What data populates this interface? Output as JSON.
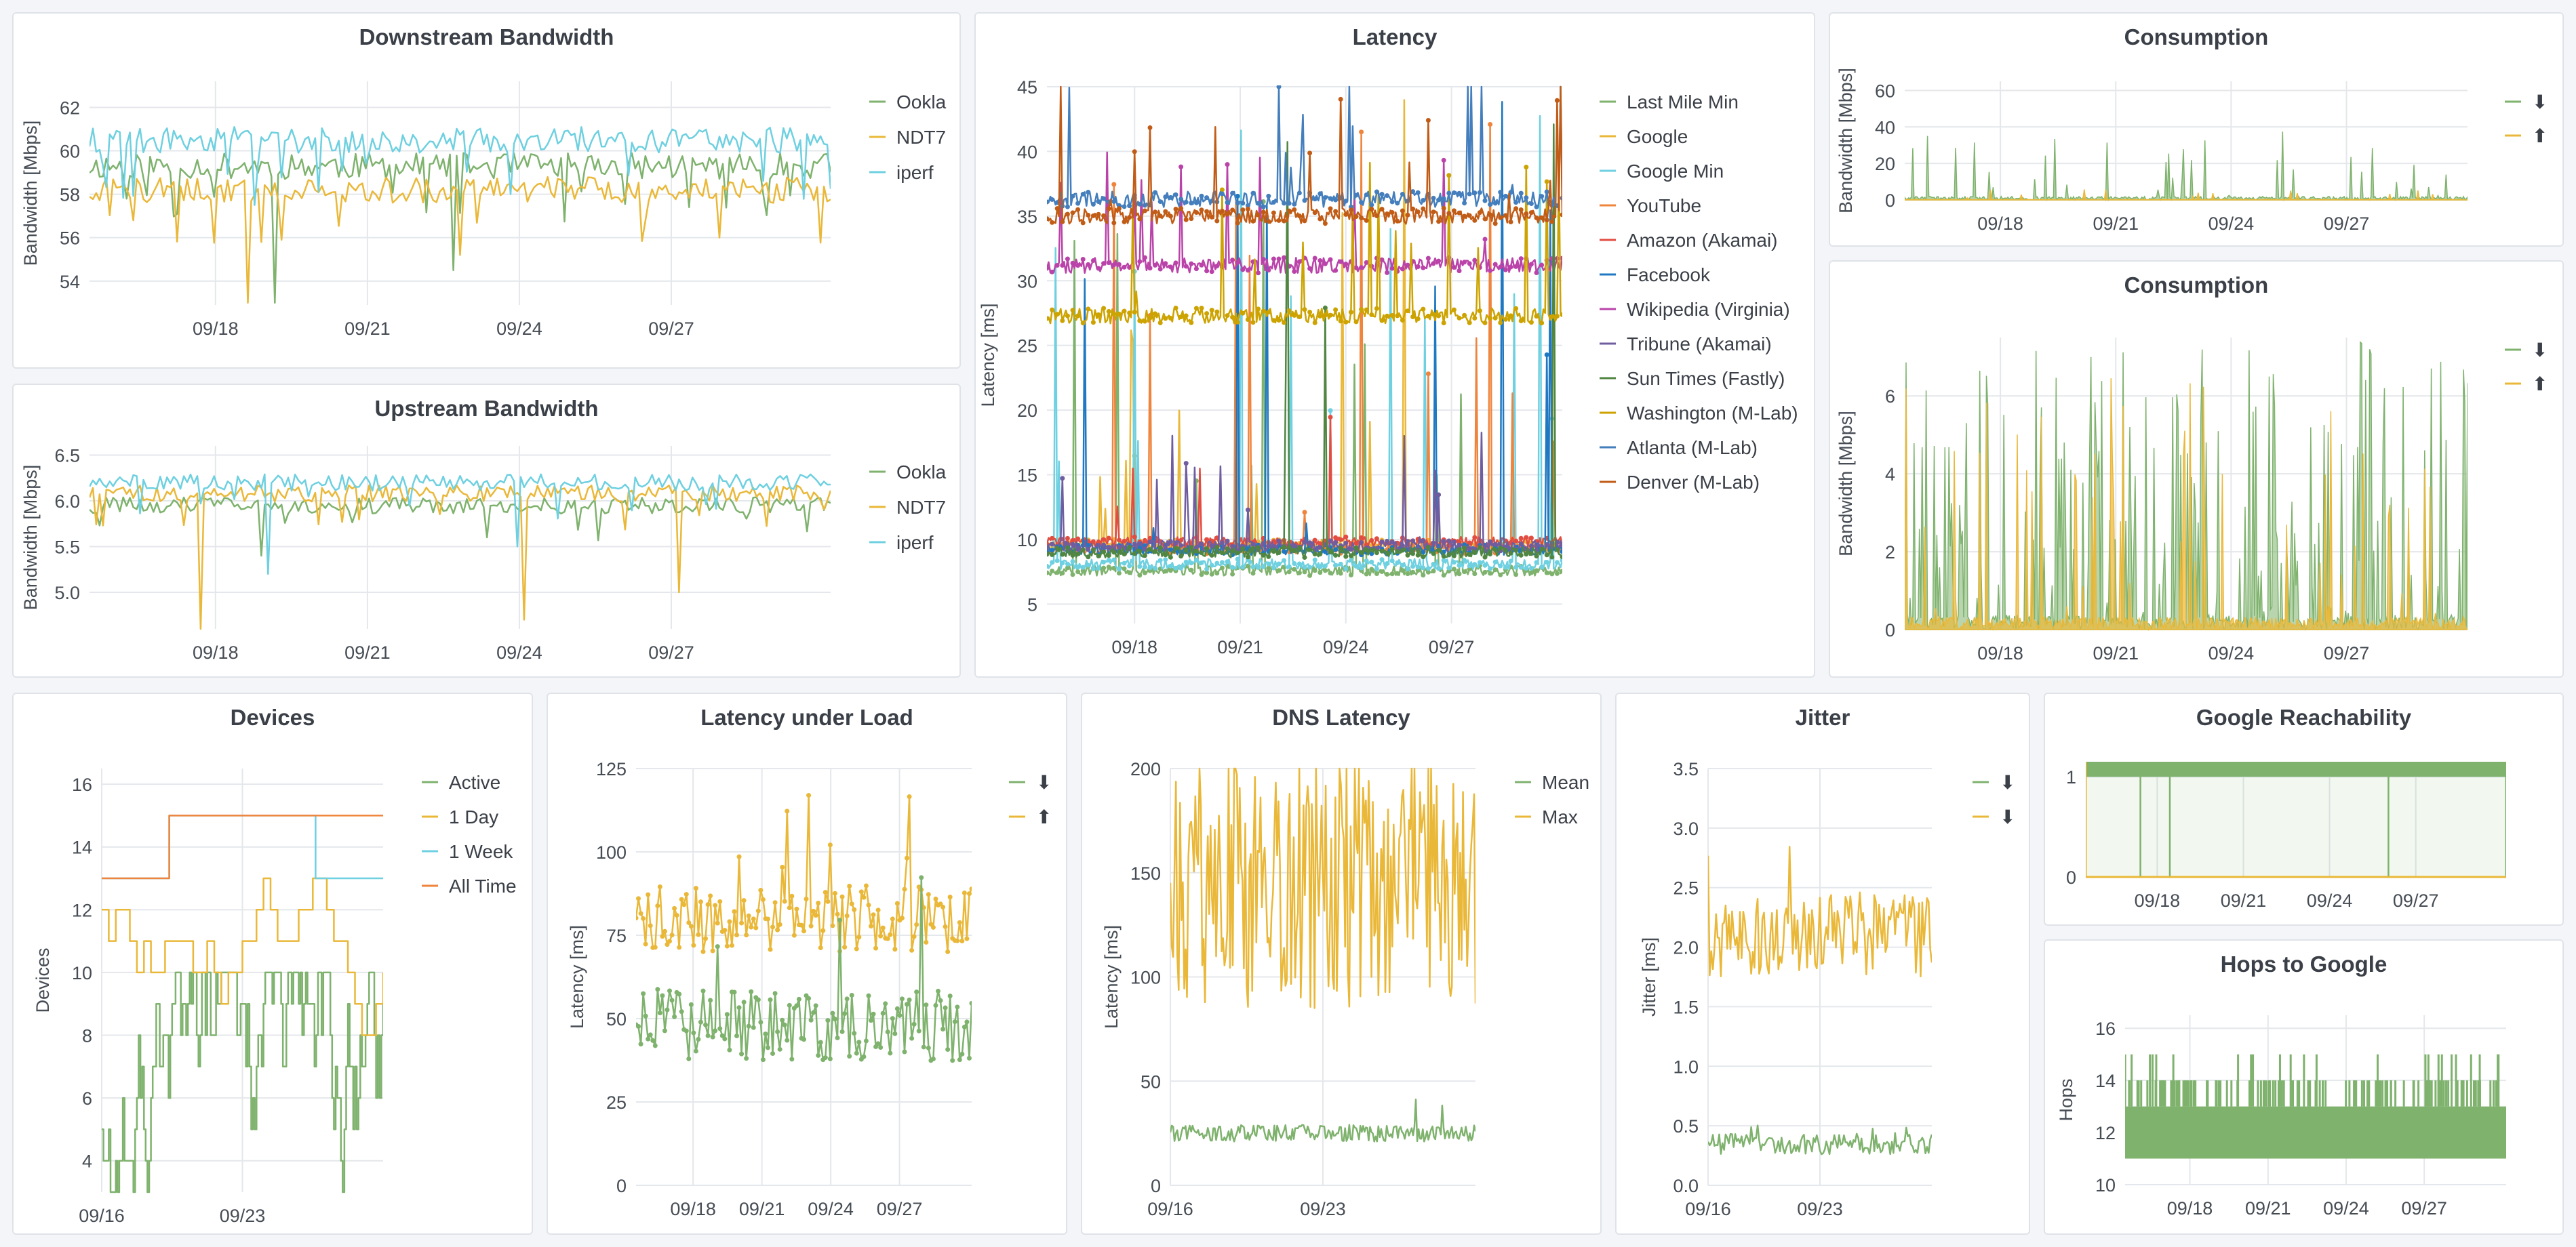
{
  "colors": {
    "green": "#7eb26d",
    "yellow": "#eab839",
    "cyan": "#6ed0e0",
    "orange": "#ef843c",
    "red": "#e24d42",
    "blue": "#1f78c1",
    "magenta": "#ba43a9",
    "purple": "#705da0",
    "darkgreen": "#508642",
    "mustard": "#cca300",
    "steelblue": "#447ebc",
    "rust": "#c15c17",
    "grid": "#e4e7eb",
    "axis_text": "#464c54"
  },
  "chart_data": [
    {
      "id": "downstream",
      "type": "line",
      "title": "Downstream Bandwidth",
      "ylabel": "Bandwidth [Mbps]",
      "ylim": [
        52.9,
        63.2
      ],
      "yticks": [
        54,
        56,
        58,
        60,
        62
      ],
      "x_tick_labels": [
        "09/18",
        "09/21",
        "09/24",
        "09/27"
      ],
      "x_range": [
        "09/15",
        "09/30"
      ],
      "legend_position": "right",
      "series": [
        {
          "name": "Ookla",
          "color_key": "green",
          "level": 59.3,
          "dips": [
            53,
            54.5,
            57.4
          ]
        },
        {
          "name": "NDT7",
          "color_key": "yellow",
          "level": 58.2,
          "dips": [
            53.0,
            55.2,
            56.0
          ]
        },
        {
          "name": "iperf",
          "color_key": "cyan",
          "level": 60.5,
          "dips": [
            57.5,
            58.0
          ]
        }
      ]
    },
    {
      "id": "upstream",
      "type": "line",
      "title": "Upstream Bandwidth",
      "ylabel": "Bandwidth [Mbps]",
      "ylim": [
        4.6,
        6.6
      ],
      "yticks": [
        5.0,
        5.5,
        6.0,
        6.5
      ],
      "x_tick_labels": [
        "09/18",
        "09/21",
        "09/24",
        "09/27"
      ],
      "x_range": [
        "09/15",
        "09/30"
      ],
      "legend_position": "right",
      "series": [
        {
          "name": "Ookla",
          "color_key": "green",
          "level": 5.95,
          "dips": [
            5.4,
            5.6
          ]
        },
        {
          "name": "NDT7",
          "color_key": "yellow",
          "level": 6.08,
          "dips": [
            4.6,
            4.7,
            5.0
          ]
        },
        {
          "name": "iperf",
          "color_key": "cyan",
          "level": 6.2,
          "dips": [
            5.2,
            5.5
          ]
        }
      ]
    },
    {
      "id": "latency",
      "type": "line",
      "title": "Latency",
      "ylabel": "Latency [ms]",
      "ylim": [
        3.5,
        45
      ],
      "yticks": [
        5,
        10,
        15,
        20,
        25,
        30,
        35,
        40,
        45
      ],
      "x_tick_labels": [
        "09/18",
        "09/21",
        "09/24",
        "09/27"
      ],
      "x_range": [
        "09/15",
        "09/30"
      ],
      "legend_position": "right",
      "series": [
        {
          "name": "Last Mile Min",
          "color_key": "green",
          "level": 7.6
        },
        {
          "name": "Google",
          "color_key": "yellow",
          "level": 9.6
        },
        {
          "name": "Google Min",
          "color_key": "cyan",
          "level": 8.1
        },
        {
          "name": "YouTube",
          "color_key": "orange",
          "level": 9.3
        },
        {
          "name": "Amazon (Akamai)",
          "color_key": "red",
          "level": 9.8
        },
        {
          "name": "Facebook",
          "color_key": "blue",
          "level": 9.2
        },
        {
          "name": "Wikipedia (Virginia)",
          "color_key": "magenta",
          "level": 31.2
        },
        {
          "name": "Tribune (Akamai)",
          "color_key": "purple",
          "level": 9.5
        },
        {
          "name": "Sun Times (Fastly)",
          "color_key": "darkgreen",
          "level": 9.0
        },
        {
          "name": "Washington (M-Lab)",
          "color_key": "mustard",
          "level": 27.3
        },
        {
          "name": "Atlanta (M-Lab)",
          "color_key": "steelblue",
          "level": 36.3
        },
        {
          "name": "Denver (M-Lab)",
          "color_key": "rust",
          "level": 35.0
        }
      ]
    },
    {
      "id": "consumption_small",
      "type": "area",
      "title": "Consumption",
      "ylabel": "Bandwidth [Mbps]",
      "ylim": [
        0,
        65
      ],
      "yticks": [
        0,
        20,
        40,
        60
      ],
      "x_tick_labels": [
        "09/18",
        "09/21",
        "09/24",
        "09/27"
      ],
      "x_range": [
        "09/15",
        "09/30"
      ],
      "legend_position": "right",
      "series": [
        {
          "name": "⬇",
          "color_key": "green",
          "peak": 38
        },
        {
          "name": "⬆",
          "color_key": "yellow",
          "peak": 6
        }
      ]
    },
    {
      "id": "consumption_large",
      "type": "area",
      "title": "Consumption",
      "ylabel": "Bandwidth [Mbps]",
      "ylim": [
        0,
        7.5
      ],
      "yticks": [
        0,
        2,
        4,
        6
      ],
      "x_tick_labels": [
        "09/18",
        "09/21",
        "09/24",
        "09/27"
      ],
      "x_range": [
        "09/15",
        "09/30"
      ],
      "legend_position": "right",
      "series": [
        {
          "name": "⬇",
          "color_key": "green",
          "peak": 7.5
        },
        {
          "name": "⬆",
          "color_key": "yellow",
          "peak": 6.5
        }
      ]
    },
    {
      "id": "devices",
      "type": "line",
      "title": "Devices",
      "ylabel": "Devices",
      "ylim": [
        3,
        16.5
      ],
      "yticks": [
        4,
        6,
        8,
        10,
        12,
        14,
        16
      ],
      "x_tick_labels": [
        "09/16",
        "09/23"
      ],
      "x_range": [
        "09/16",
        "09/30"
      ],
      "legend_position": "right",
      "series": [
        {
          "name": "Active",
          "color_key": "green",
          "range": [
            3,
            10
          ]
        },
        {
          "name": "1 Day",
          "color_key": "yellow",
          "range": [
            8,
            14
          ]
        },
        {
          "name": "1 Week",
          "color_key": "cyan",
          "steps": [
            [
              0,
              13
            ],
            [
              0.24,
              15
            ],
            [
              0.76,
              13
            ]
          ]
        },
        {
          "name": "All Time",
          "color_key": "orange",
          "steps": [
            [
              0,
              13
            ],
            [
              0.24,
              15
            ]
          ]
        }
      ]
    },
    {
      "id": "latency_load",
      "type": "line",
      "title": "Latency under Load",
      "ylabel": "Latency [ms]",
      "ylim": [
        0,
        125
      ],
      "yticks": [
        0,
        25,
        50,
        75,
        100,
        125
      ],
      "x_tick_labels": [
        "09/18",
        "09/21",
        "09/24",
        "09/27"
      ],
      "x_range": [
        "09/15",
        "09/30"
      ],
      "legend_position": "right",
      "series": [
        {
          "name": "⬇",
          "color_key": "green",
          "level": 48
        },
        {
          "name": "⬆",
          "color_key": "yellow",
          "level": 80
        }
      ]
    },
    {
      "id": "dns",
      "type": "line",
      "title": "DNS Latency",
      "ylabel": "Latency [ms]",
      "ylim": [
        0,
        200
      ],
      "yticks": [
        0,
        50,
        100,
        150,
        200
      ],
      "x_tick_labels": [
        "09/16",
        "09/23"
      ],
      "x_range": [
        "09/16",
        "09/30"
      ],
      "legend_position": "right",
      "series": [
        {
          "name": "Mean",
          "color_key": "green",
          "level": 25
        },
        {
          "name": "Max",
          "color_key": "yellow",
          "level": 140
        }
      ]
    },
    {
      "id": "jitter",
      "type": "line",
      "title": "Jitter",
      "ylabel": "Jitter [ms]",
      "ylim": [
        0,
        3.5
      ],
      "yticks": [
        0,
        0.5,
        1.0,
        1.5,
        2.0,
        2.5,
        3.0,
        3.5
      ],
      "x_tick_labels": [
        "09/16",
        "09/23"
      ],
      "x_range": [
        "09/16",
        "09/30"
      ],
      "legend_position": "right",
      "series": [
        {
          "name": "⬇",
          "color_key": "green",
          "level": 0.35
        },
        {
          "name": "⬇",
          "color_key": "yellow",
          "level": 2.1
        }
      ]
    },
    {
      "id": "reachability",
      "type": "area",
      "title": "Google Reachability",
      "ylabel": "",
      "ylim": [
        0,
        1.15
      ],
      "yticks": [
        0,
        1
      ],
      "x_tick_labels": [
        "09/18",
        "09/21",
        "09/24",
        "09/27"
      ],
      "x_range": [
        "09/15",
        "09/30"
      ],
      "legend_position": "none",
      "series": [
        {
          "name": "",
          "color_key": "green",
          "level": 1
        }
      ]
    },
    {
      "id": "hops",
      "type": "area",
      "title": "Hops to Google",
      "ylabel": "Hops",
      "ylim": [
        10,
        16.5
      ],
      "yticks": [
        10,
        12,
        14,
        16
      ],
      "x_tick_labels": [
        "09/18",
        "09/21",
        "09/24",
        "09/27"
      ],
      "x_range": [
        "09/15",
        "09/30"
      ],
      "legend_position": "none",
      "series": [
        {
          "name": "",
          "color_key": "green",
          "range": [
            11,
            13
          ]
        }
      ]
    }
  ]
}
